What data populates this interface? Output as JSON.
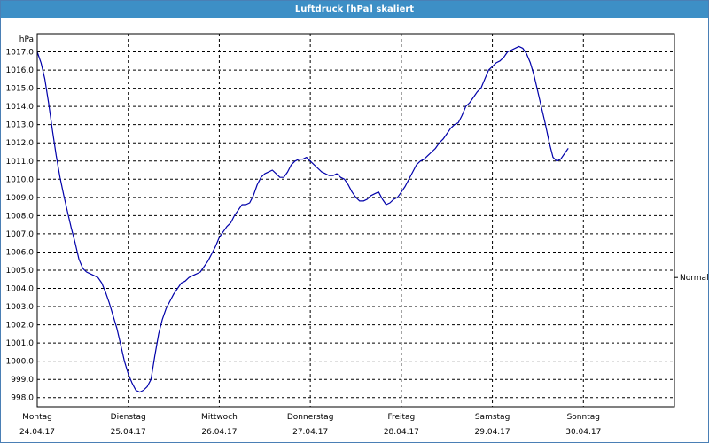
{
  "window": {
    "title": "Luftdruck [hPa] skaliert"
  },
  "chart_data": {
    "type": "line",
    "title": "Luftdruck [hPa] skaliert",
    "ylabel": "hPa",
    "xlabel": "",
    "ylim": [
      997.5,
      1018.0
    ],
    "xlim": [
      0,
      168
    ],
    "x_unit": "hours since 24.04.17 00:00",
    "yticks": [
      998.0,
      999.0,
      1000.0,
      1001.0,
      1002.0,
      1003.0,
      1004.0,
      1005.0,
      1006.0,
      1007.0,
      1008.0,
      1009.0,
      1010.0,
      1011.0,
      1012.0,
      1013.0,
      1014.0,
      1015.0,
      1016.0,
      1017.0
    ],
    "ytick_labels": [
      "998,0",
      "999,0",
      "1000,0",
      "1001,0",
      "1002,0",
      "1003,0",
      "1004,0",
      "1005,0",
      "1006,0",
      "1007,0",
      "1008,0",
      "1009,0",
      "1010,0",
      "1011,0",
      "1012,0",
      "1013,0",
      "1014,0",
      "1015,0",
      "1016,0",
      "1017,0"
    ],
    "xticks": [
      {
        "x": 0,
        "day": "Montag",
        "date": "24.04.17"
      },
      {
        "x": 24,
        "day": "Dienstag",
        "date": "25.04.17"
      },
      {
        "x": 48,
        "day": "Mittwoch",
        "date": "26.04.17"
      },
      {
        "x": 72,
        "day": "Donnerstag",
        "date": "27.04.17"
      },
      {
        "x": 96,
        "day": "Freitag",
        "date": "28.04.17"
      },
      {
        "x": 120,
        "day": "Samstag",
        "date": "29.04.17"
      },
      {
        "x": 144,
        "day": "Sonntag",
        "date": "30.04.17"
      }
    ],
    "grid": true,
    "reference_line": {
      "label": "Normal",
      "value": 1004.6
    },
    "series": [
      {
        "color": "#0000aa",
        "points": [
          [
            0,
            1017.0
          ],
          [
            1,
            1016.4
          ],
          [
            2,
            1015.5
          ],
          [
            3,
            1014.2
          ],
          [
            4,
            1012.7
          ],
          [
            5,
            1011.3
          ],
          [
            6,
            1010.1
          ],
          [
            7,
            1009.1
          ],
          [
            8,
            1008.2
          ],
          [
            9,
            1007.3
          ],
          [
            10,
            1006.5
          ],
          [
            11,
            1005.6
          ],
          [
            12,
            1005.1
          ],
          [
            13,
            1004.9
          ],
          [
            14,
            1004.8
          ],
          [
            15,
            1004.7
          ],
          [
            16,
            1004.6
          ],
          [
            17,
            1004.3
          ],
          [
            18,
            1003.8
          ],
          [
            19,
            1003.2
          ],
          [
            20,
            1002.5
          ],
          [
            21,
            1001.8
          ],
          [
            22,
            1000.9
          ],
          [
            23,
            1000.0
          ],
          [
            24,
            999.3
          ],
          [
            25,
            998.8
          ],
          [
            26,
            998.4
          ],
          [
            27,
            998.3
          ],
          [
            28,
            998.4
          ],
          [
            29,
            998.6
          ],
          [
            30,
            999.0
          ],
          [
            31,
            1000.3
          ],
          [
            32,
            1001.5
          ],
          [
            33,
            1002.3
          ],
          [
            34,
            1002.9
          ],
          [
            35,
            1003.3
          ],
          [
            36,
            1003.7
          ],
          [
            37,
            1004.0
          ],
          [
            38,
            1004.3
          ],
          [
            39,
            1004.4
          ],
          [
            40,
            1004.6
          ],
          [
            41,
            1004.7
          ],
          [
            42,
            1004.8
          ],
          [
            43,
            1004.9
          ],
          [
            44,
            1005.2
          ],
          [
            45,
            1005.5
          ],
          [
            46,
            1005.9
          ],
          [
            47,
            1006.3
          ],
          [
            48,
            1006.8
          ],
          [
            49,
            1007.1
          ],
          [
            50,
            1007.4
          ],
          [
            51,
            1007.6
          ],
          [
            52,
            1008.0
          ],
          [
            53,
            1008.3
          ],
          [
            54,
            1008.6
          ],
          [
            55,
            1008.6
          ],
          [
            56,
            1008.7
          ],
          [
            57,
            1009.1
          ],
          [
            58,
            1009.7
          ],
          [
            59,
            1010.1
          ],
          [
            60,
            1010.3
          ],
          [
            61,
            1010.4
          ],
          [
            62,
            1010.5
          ],
          [
            63,
            1010.3
          ],
          [
            64,
            1010.1
          ],
          [
            65,
            1010.1
          ],
          [
            66,
            1010.4
          ],
          [
            67,
            1010.8
          ],
          [
            68,
            1011.0
          ],
          [
            69,
            1011.1
          ],
          [
            70,
            1011.1
          ],
          [
            71,
            1011.2
          ],
          [
            72,
            1011.0
          ],
          [
            73,
            1010.8
          ],
          [
            74,
            1010.6
          ],
          [
            75,
            1010.4
          ],
          [
            76,
            1010.3
          ],
          [
            77,
            1010.2
          ],
          [
            78,
            1010.2
          ],
          [
            79,
            1010.3
          ],
          [
            80,
            1010.1
          ],
          [
            81,
            1010.0
          ],
          [
            82,
            1009.7
          ],
          [
            83,
            1009.3
          ],
          [
            84,
            1009.0
          ],
          [
            85,
            1008.8
          ],
          [
            86,
            1008.8
          ],
          [
            87,
            1008.9
          ],
          [
            88,
            1009.1
          ],
          [
            89,
            1009.2
          ],
          [
            90,
            1009.3
          ],
          [
            91,
            1008.9
          ],
          [
            92,
            1008.6
          ],
          [
            93,
            1008.7
          ],
          [
            94,
            1008.9
          ],
          [
            95,
            1009.0
          ],
          [
            96,
            1009.3
          ],
          [
            97,
            1009.6
          ],
          [
            98,
            1010.0
          ],
          [
            99,
            1010.4
          ],
          [
            100,
            1010.8
          ],
          [
            101,
            1011.0
          ],
          [
            102,
            1011.1
          ],
          [
            103,
            1011.3
          ],
          [
            104,
            1011.5
          ],
          [
            105,
            1011.7
          ],
          [
            106,
            1012.0
          ],
          [
            107,
            1012.2
          ],
          [
            108,
            1012.5
          ],
          [
            109,
            1012.8
          ],
          [
            110,
            1013.0
          ],
          [
            111,
            1013.1
          ],
          [
            112,
            1013.5
          ],
          [
            113,
            1014.0
          ],
          [
            114,
            1014.2
          ],
          [
            115,
            1014.5
          ],
          [
            116,
            1014.8
          ],
          [
            117,
            1015.0
          ],
          [
            118,
            1015.5
          ],
          [
            119,
            1016.0
          ],
          [
            120,
            1016.2
          ],
          [
            121,
            1016.4
          ],
          [
            122,
            1016.5
          ],
          [
            123,
            1016.7
          ],
          [
            124,
            1017.0
          ],
          [
            125,
            1017.1
          ],
          [
            126,
            1017.2
          ],
          [
            127,
            1017.3
          ],
          [
            128,
            1017.2
          ],
          [
            129,
            1016.9
          ],
          [
            130,
            1016.4
          ],
          [
            131,
            1015.7
          ],
          [
            132,
            1014.8
          ],
          [
            133,
            1013.9
          ],
          [
            134,
            1013.0
          ],
          [
            135,
            1012.0
          ],
          [
            136,
            1011.2
          ],
          [
            137,
            1011.0
          ],
          [
            138,
            1011.1
          ],
          [
            139,
            1011.4
          ],
          [
            140,
            1011.7
          ]
        ]
      }
    ]
  }
}
